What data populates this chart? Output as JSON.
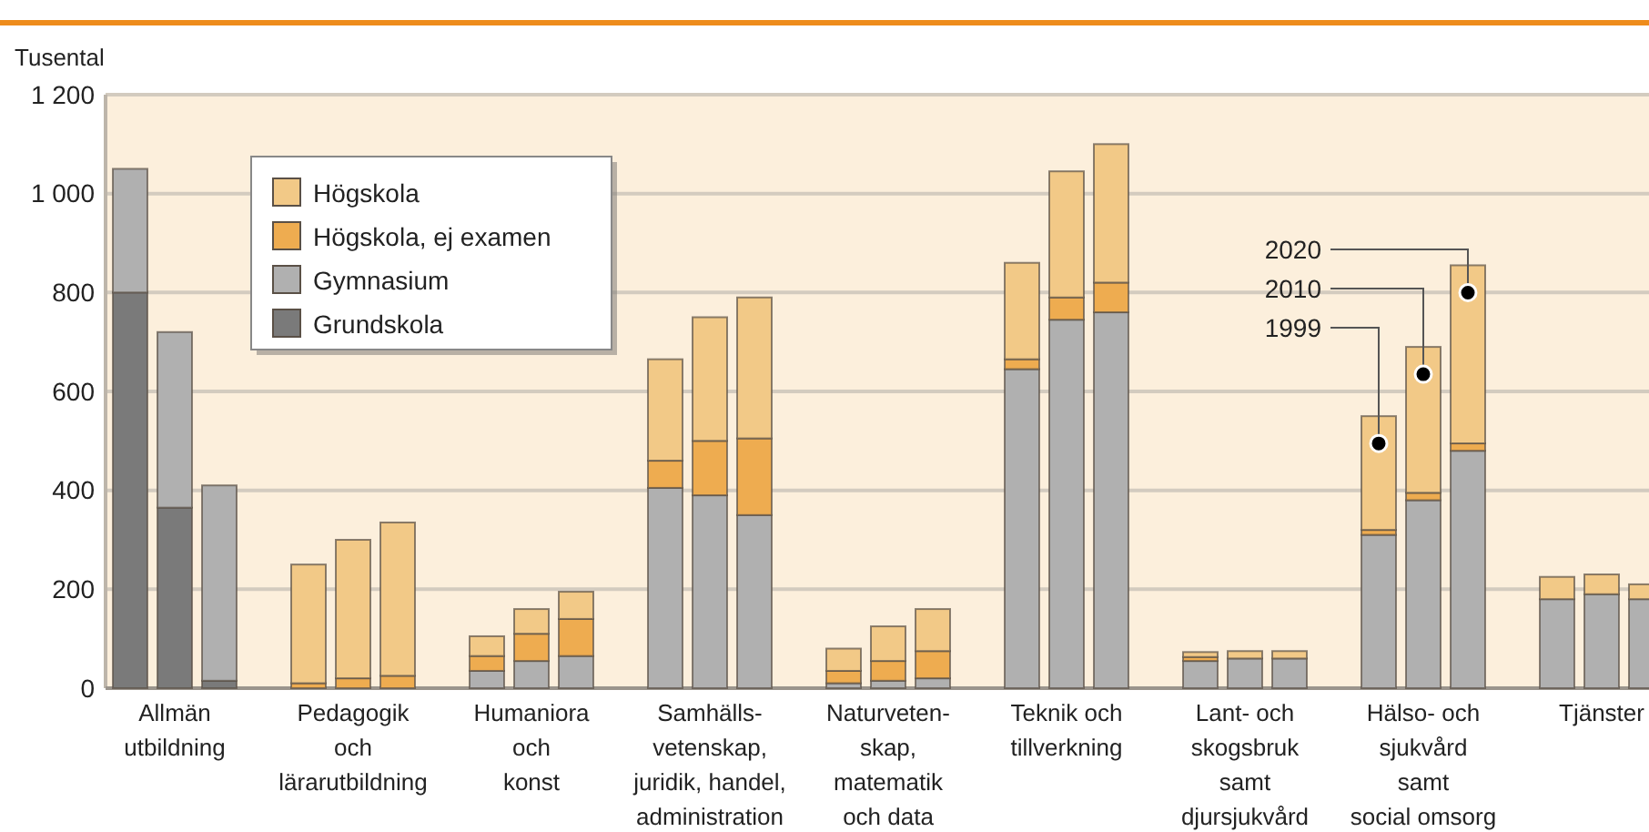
{
  "chart_data": {
    "type": "bar",
    "stacked": true,
    "ylabel": "Tusental",
    "categories": [
      null,
      "Allmän\nutbildning",
      null,
      null,
      "Pedagogik\noch\nlärarutbildning",
      null,
      null,
      "Humaniora\noch\nkonst",
      null,
      null,
      "Samhälls-\nvetenskap,\njuridik, handel,\nadministration",
      null,
      null,
      "Naturveten-\nskap,\nmatematik\noch data",
      null,
      null,
      "Teknik och\ntillverkning",
      null,
      null,
      "Lant- och\nskogsbruk\nsamt\ndjursjukvård",
      null,
      null,
      "Hälso- och\nsjukvård\nsamt\nsocial omsorg",
      null,
      null,
      "Tjänster",
      null
    ],
    "series": [
      {
        "name": "Grundskola",
        "color": "#7a7a7a",
        "values": [
          800,
          365,
          15,
          0,
          0,
          0,
          0,
          0,
          0,
          0,
          0,
          0,
          0,
          0,
          0,
          0,
          0,
          0,
          0,
          0,
          0,
          0,
          0,
          0,
          0,
          0,
          0
        ]
      },
      {
        "name": "Gymnasium",
        "color": "#b0b0b0",
        "values": [
          250,
          355,
          395,
          0,
          0,
          0,
          35,
          55,
          65,
          405,
          390,
          350,
          10,
          15,
          20,
          645,
          745,
          760,
          55,
          60,
          60,
          310,
          380,
          480,
          180,
          190,
          180
        ]
      },
      {
        "name": "Högskola, ej examen",
        "color": "#eeac50",
        "values": [
          0,
          0,
          0,
          10,
          20,
          25,
          30,
          55,
          75,
          55,
          110,
          155,
          25,
          40,
          55,
          20,
          45,
          60,
          8,
          null,
          null,
          10,
          15,
          15,
          0,
          0,
          0
        ]
      },
      {
        "name": "Högskola",
        "color": "#f2c987",
        "values": [
          0,
          0,
          0,
          240,
          280,
          310,
          40,
          50,
          55,
          205,
          250,
          285,
          45,
          70,
          85,
          195,
          255,
          280,
          10,
          15,
          15,
          230,
          295,
          360,
          45,
          40,
          30
        ]
      }
    ],
    "ylim": [
      0,
      1200
    ],
    "yticks": [
      0,
      200,
      400,
      600,
      800,
      {
        "value": 1000,
        "label": "1 000"
      },
      {
        "value": 1200,
        "label": "1 200"
      }
    ],
    "grid": "y",
    "legend": "top left",
    "annotations": [
      "1999",
      "2010",
      "2020"
    ]
  }
}
